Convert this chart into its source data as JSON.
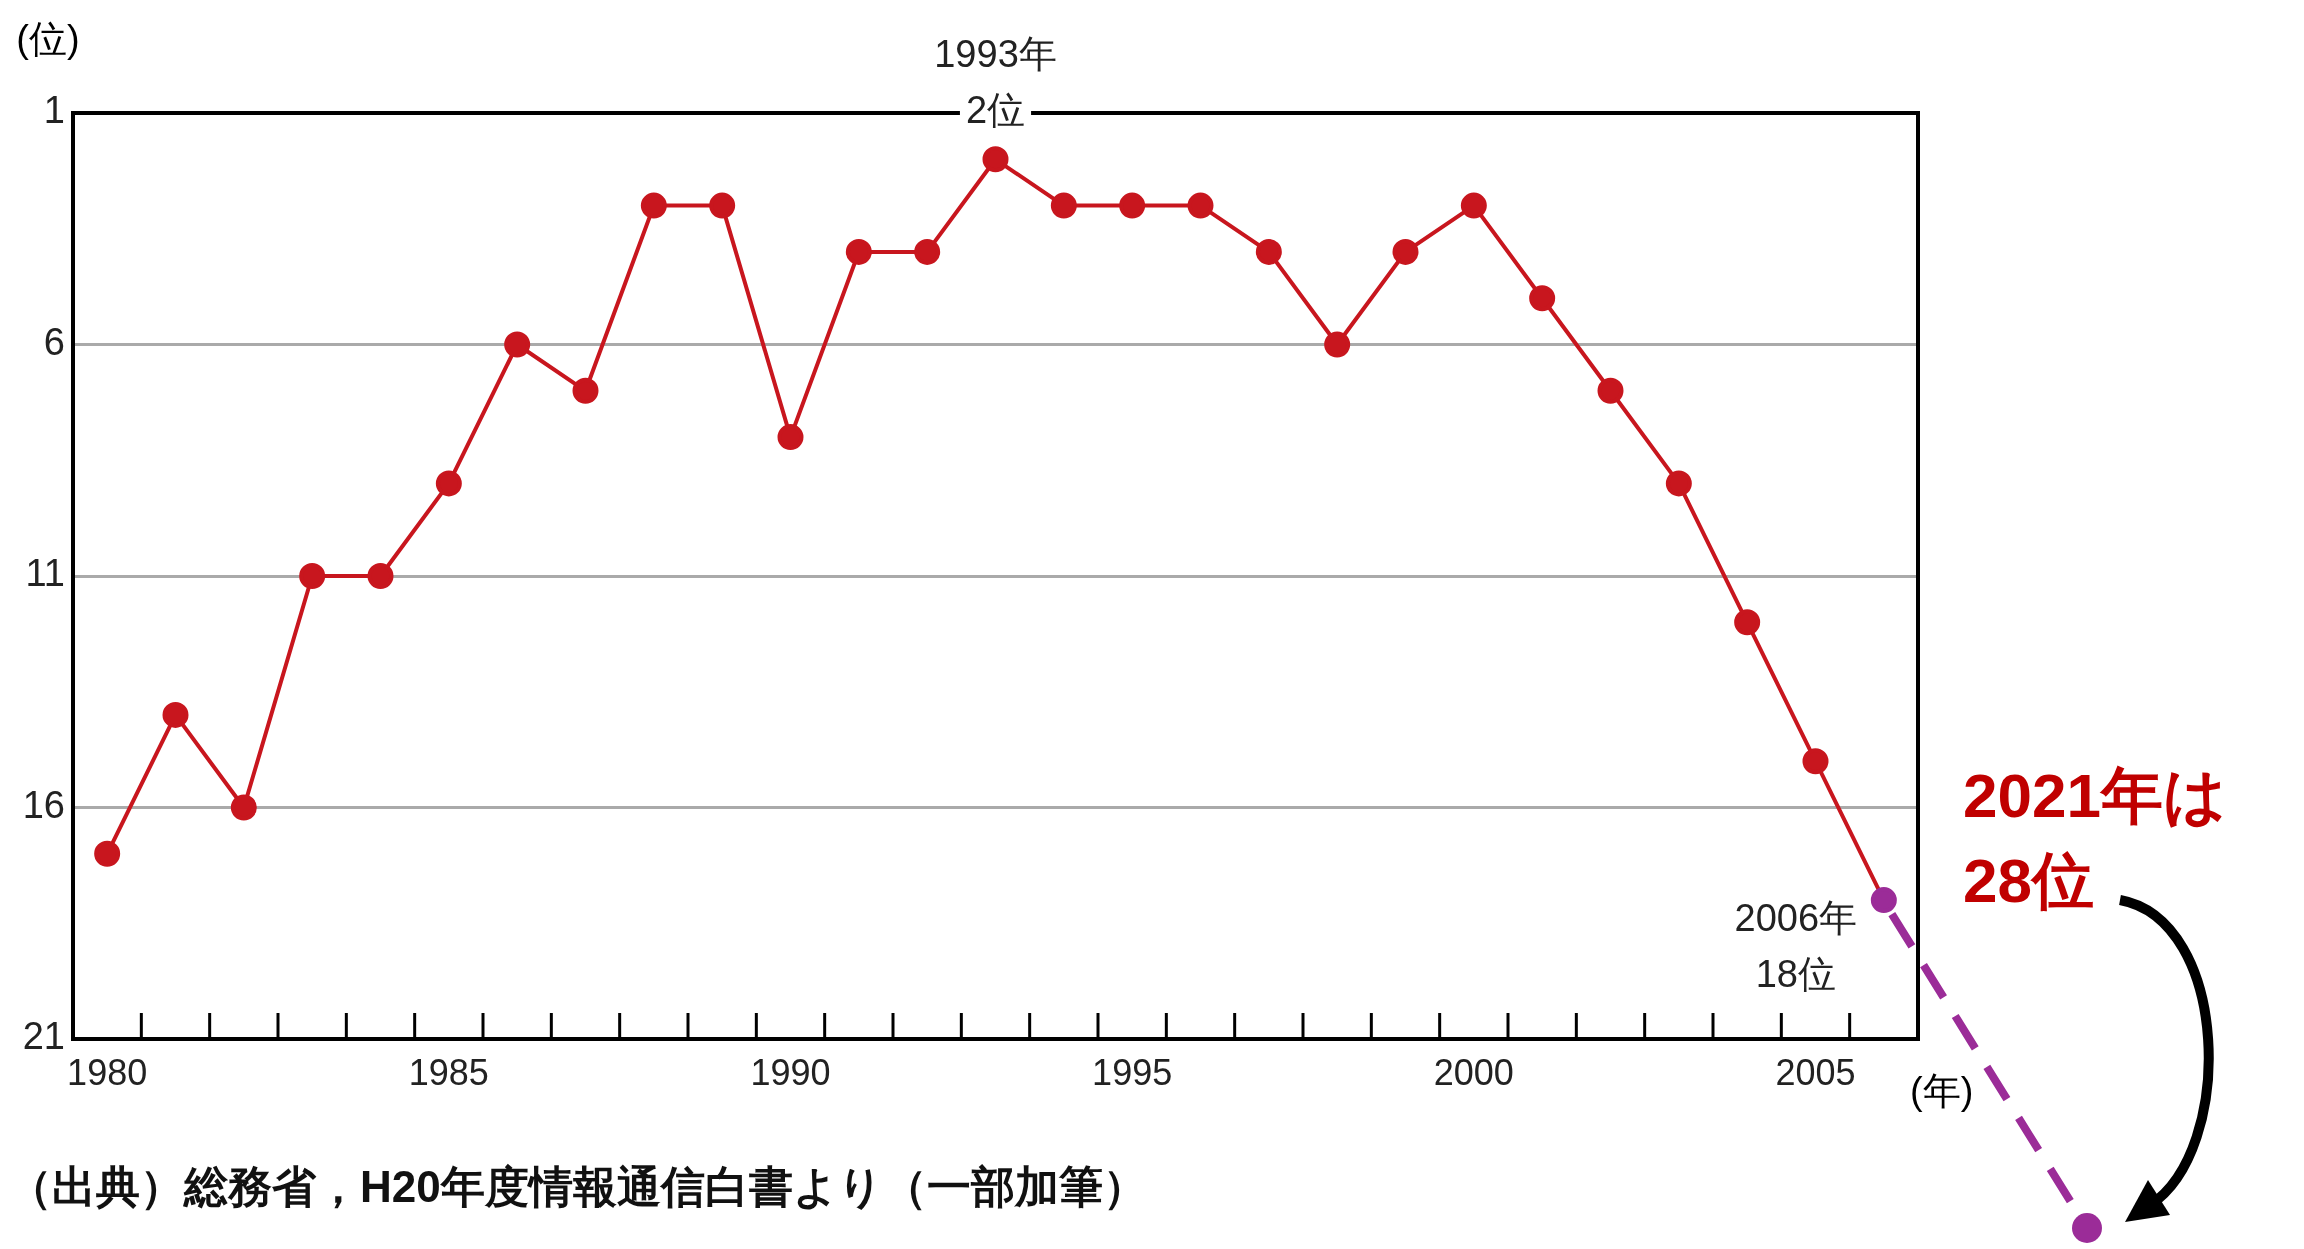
{
  "chart_data": {
    "type": "line",
    "xlabel": "(年)",
    "ylabel": "(位)",
    "x": [
      1980,
      1981,
      1982,
      1983,
      1984,
      1985,
      1986,
      1987,
      1988,
      1989,
      1990,
      1991,
      1992,
      1993,
      1994,
      1995,
      1996,
      1997,
      1998,
      1999,
      2000,
      2001,
      2002,
      2003,
      2004,
      2005,
      2006
    ],
    "series": [
      {
        "color": "#c8161e",
        "values": [
          17,
          14,
          16,
          11,
          11,
          9,
          6,
          7,
          3,
          3,
          8,
          4,
          4,
          2,
          3,
          3,
          3,
          4,
          6,
          4,
          3,
          5,
          7,
          9,
          12,
          15,
          18
        ],
        "colors": [
          "#c8161e",
          "#c8161e",
          "#c8161e",
          "#c8161e",
          "#c8161e",
          "#c8161e",
          "#c8161e",
          "#c8161e",
          "#c8161e",
          "#c8161e",
          "#c8161e",
          "#c8161e",
          "#c8161e",
          "#c8161e",
          "#c8161e",
          "#c8161e",
          "#c8161e",
          "#c8161e",
          "#c8161e",
          "#c8161e",
          "#c8161e",
          "#c8161e",
          "#c8161e",
          "#c8161e",
          "#c8161e",
          "#c8161e",
          "#9b2c98"
        ]
      }
    ],
    "xlim": [
      1979.5,
      2006.5
    ],
    "xticks": [
      1980,
      1985,
      1990,
      1995,
      2000,
      2005
    ],
    "ylim": [
      21,
      1
    ],
    "yticks": [
      1,
      6,
      11,
      16,
      21
    ],
    "grid": "y",
    "marker": "circle",
    "line_style": "solid",
    "annotations": [
      {
        "text": "1993年\n2位",
        "x": 1993,
        "y": 2
      },
      {
        "text": "2006年\n18位",
        "x": 2006,
        "y": 18
      },
      "2021年は\n28位",
      "（出典）総務省，H20年度情報通信白書より（一部加筆）"
    ]
  }
}
